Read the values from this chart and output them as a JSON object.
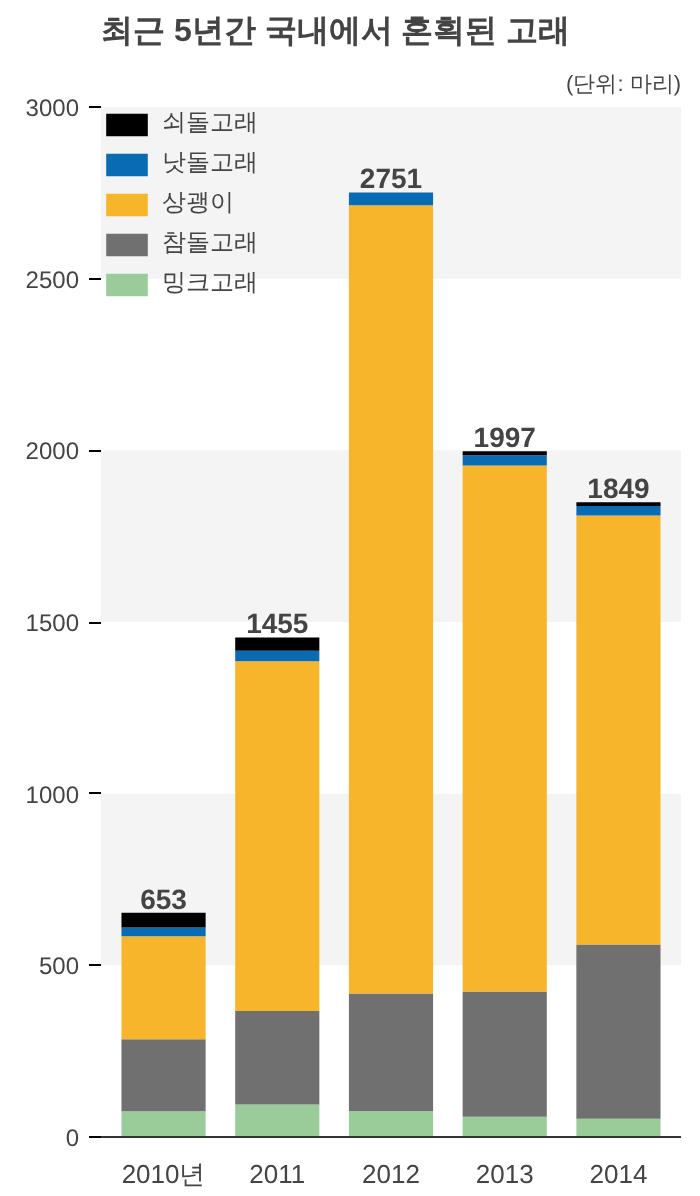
{
  "chart_data": {
    "type": "bar",
    "title": "최근 5년간 국내에서 혼획된 고래",
    "subtitle": "(단위: 마리)",
    "categories": [
      "2010년",
      "2011",
      "2012",
      "2013",
      "2014"
    ],
    "stacked": true,
    "series": [
      {
        "name": "밍크고래",
        "color": "#99cc99",
        "values": [
          75,
          95,
          76,
          59,
          53
        ]
      },
      {
        "name": "참돌고래",
        "color": "#707070",
        "values": [
          210,
          272,
          342,
          365,
          508
        ]
      },
      {
        "name": "상괭이",
        "color": "#f7b52c",
        "values": [
          300,
          1019,
          2296,
          1532,
          1249
        ]
      },
      {
        "name": "낫돌고래",
        "color": "#0a6bb5",
        "values": [
          25,
          30,
          37,
          30,
          28
        ]
      },
      {
        "name": "쇠돌고래",
        "color": "#000000",
        "values": [
          43,
          39,
          0,
          11,
          11
        ]
      }
    ],
    "totals": [
      "653",
      "1455",
      "2751",
      "1997",
      "1849"
    ],
    "ylim": [
      0,
      3000
    ],
    "yticks": [
      0,
      500,
      1000,
      1500,
      2000,
      2500,
      3000
    ],
    "bands": [
      {
        "axis": "y",
        "from": 500,
        "to": 1000,
        "color": "#f4f4f4"
      },
      {
        "axis": "y",
        "from": 1500,
        "to": 2000,
        "color": "#f4f4f4"
      },
      {
        "axis": "y",
        "from": 2500,
        "to": 3000,
        "color": "#f4f4f4"
      }
    ],
    "grid": false,
    "legend": "top left"
  }
}
